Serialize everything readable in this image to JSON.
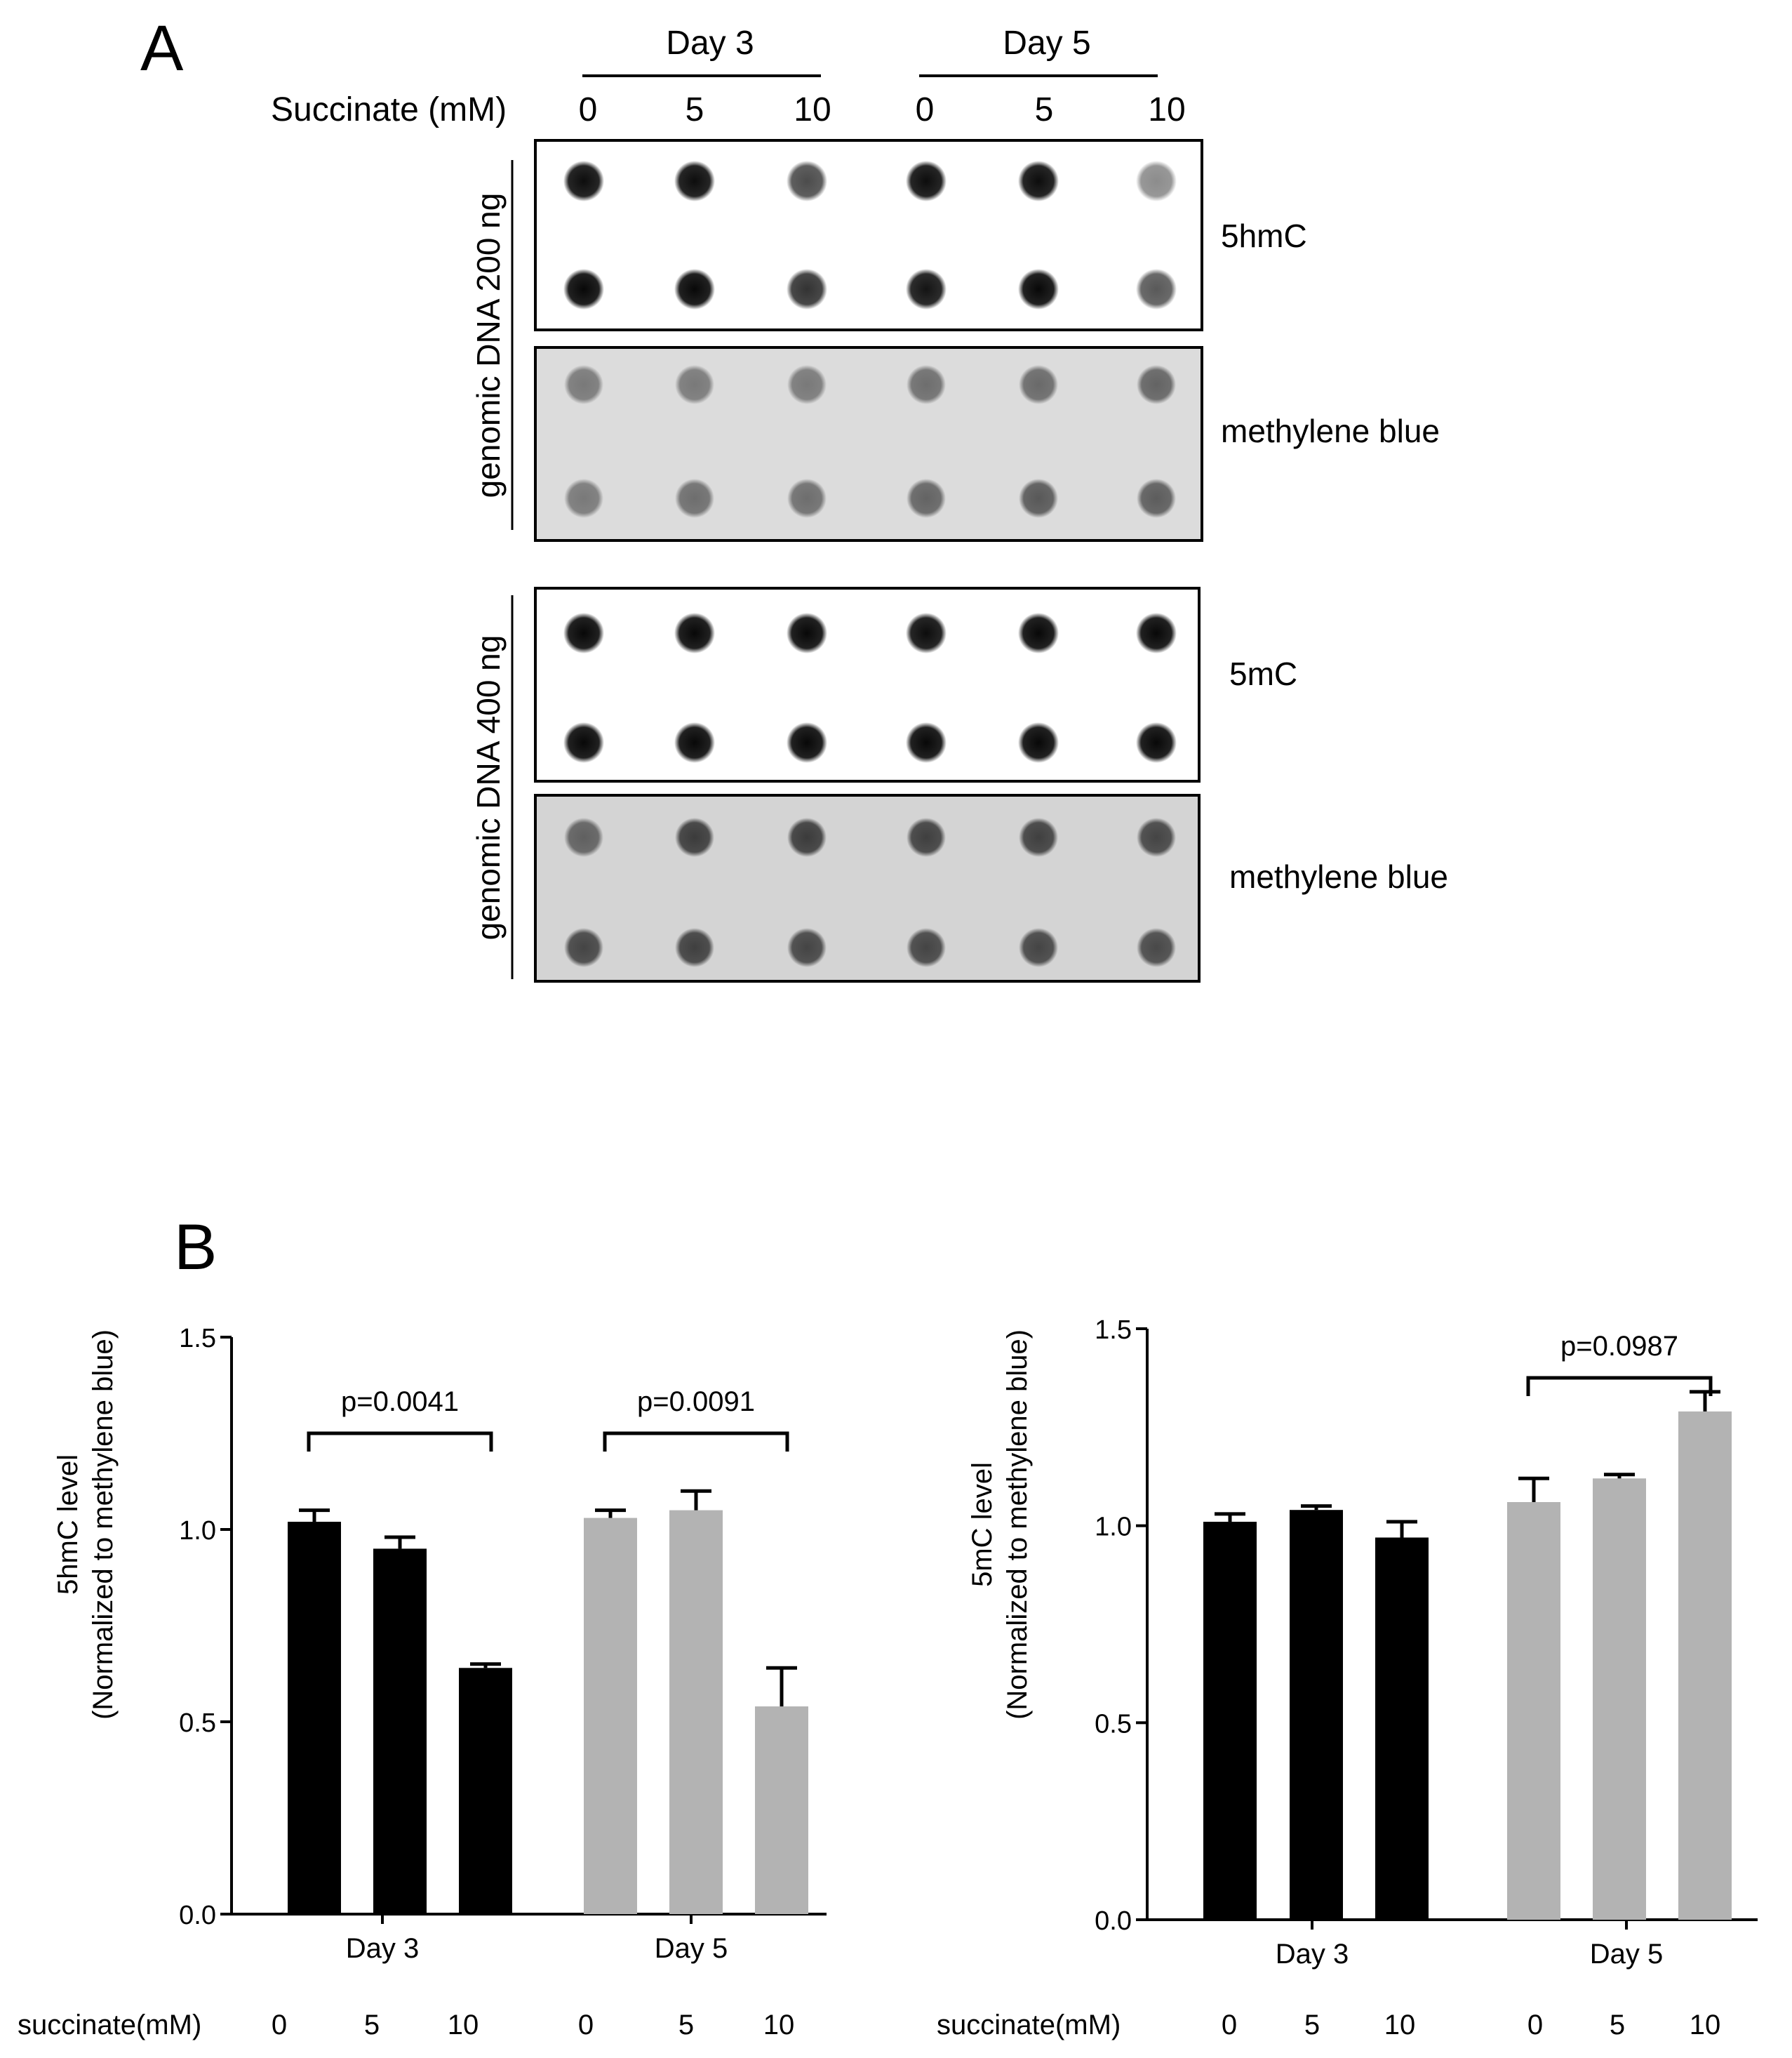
{
  "panel_a": {
    "label": "A",
    "groups": [
      "Day 3",
      "Day 5"
    ],
    "succinate_label": "Succinate (mM)",
    "concentrations": [
      "0",
      "5",
      "10",
      "0",
      "5",
      "10"
    ],
    "blots": [
      {
        "side_label": "genomic DNA   200 ng",
        "top_label": "5hmC",
        "bottom_label": "methylene blue",
        "top_intensity": [
          [
            0.95,
            0.95,
            0.7,
            0.95,
            0.95,
            0.45
          ],
          [
            0.97,
            0.97,
            0.8,
            0.92,
            0.97,
            0.65
          ]
        ],
        "bottom_intensity": [
          [
            0.45,
            0.45,
            0.45,
            0.5,
            0.52,
            0.55
          ],
          [
            0.45,
            0.5,
            0.5,
            0.55,
            0.6,
            0.58
          ]
        ]
      },
      {
        "side_label": "genomic DNA   400 ng",
        "top_label": "5mC",
        "bottom_label": "methylene blue",
        "top_intensity": [
          [
            0.97,
            0.97,
            0.97,
            0.95,
            0.97,
            0.97
          ],
          [
            0.97,
            0.97,
            0.97,
            0.97,
            0.97,
            0.97
          ]
        ],
        "bottom_intensity": [
          [
            0.55,
            0.72,
            0.72,
            0.7,
            0.7,
            0.68
          ],
          [
            0.68,
            0.7,
            0.68,
            0.68,
            0.68,
            0.66
          ]
        ]
      }
    ]
  },
  "panel_b": {
    "label": "B"
  },
  "chart_data": [
    {
      "type": "bar",
      "ylabel": "5hmC level (Normalized to methylene blue)",
      "ylabel_line1": "5hmC level",
      "ylabel_line2": "(Normalized to methylene blue)",
      "ylim": [
        0,
        1.5
      ],
      "yticks": [
        "0.0",
        "0.5",
        "1.0",
        "1.5"
      ],
      "groups": [
        "Day 3",
        "Day 5"
      ],
      "x_prefix": "succinate(mM)",
      "categories": [
        "0",
        "5",
        "10",
        "0",
        "5",
        "10"
      ],
      "values": [
        1.02,
        0.95,
        0.64,
        1.03,
        1.05,
        0.54
      ],
      "errors": [
        0.03,
        0.03,
        0.01,
        0.02,
        0.05,
        0.1
      ],
      "colors": [
        "#000000",
        "#000000",
        "#000000",
        "#b3b3b3",
        "#b3b3b3",
        "#b3b3b3"
      ],
      "annotations": [
        {
          "text": "p=0.0041",
          "from": 0,
          "to": 2
        },
        {
          "text": "p=0.0091",
          "from": 3,
          "to": 5
        }
      ]
    },
    {
      "type": "bar",
      "ylabel": "5mC level (Normalized to methylene blue)",
      "ylabel_line1": "5mC level",
      "ylabel_line2": "(Normalized to methylene blue)",
      "ylim": [
        0,
        1.5
      ],
      "yticks": [
        "0.0",
        "0.5",
        "1.0",
        "1.5"
      ],
      "groups": [
        "Day 3",
        "Day 5"
      ],
      "x_prefix": "succinate(mM)",
      "categories": [
        "0",
        "5",
        "10",
        "0",
        "5",
        "10"
      ],
      "values": [
        1.01,
        1.04,
        0.97,
        1.06,
        1.12,
        1.29
      ],
      "errors": [
        0.02,
        0.01,
        0.04,
        0.06,
        0.01,
        0.05
      ],
      "colors": [
        "#000000",
        "#000000",
        "#000000",
        "#b3b3b3",
        "#b3b3b3",
        "#b3b3b3"
      ],
      "annotations": [
        {
          "text": "p=0.0987",
          "from": 3,
          "to": 5
        }
      ]
    }
  ]
}
